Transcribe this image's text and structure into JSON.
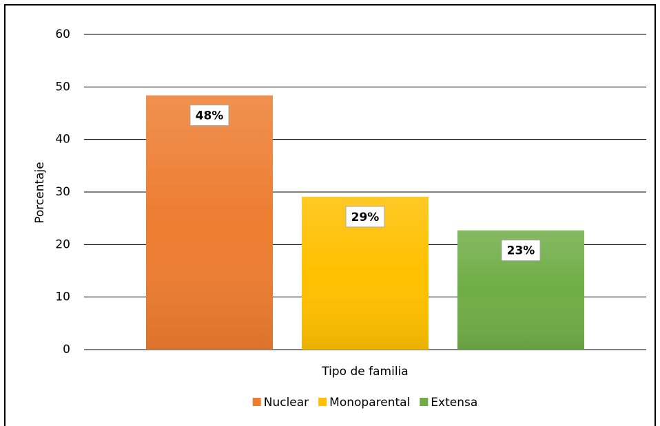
{
  "chart_data": {
    "type": "bar",
    "x_label": "Tipo de familia",
    "y_label": "Porcentaje",
    "categories": [
      null
    ],
    "series": [
      {
        "name": "Nuclear",
        "color": "#ed7d31",
        "values": [
          48.4
        ],
        "value_labels": [
          "48%"
        ]
      },
      {
        "name": "Monoparental",
        "color": "#ffc000",
        "values": [
          29.1
        ],
        "value_labels": [
          "29%"
        ]
      },
      {
        "name": "Extensa",
        "color": "#70ad47",
        "values": [
          22.7
        ],
        "value_labels": [
          "23%"
        ]
      }
    ],
    "ylim": [
      0,
      60
    ],
    "yticks": [
      0,
      10,
      20,
      30,
      40,
      50,
      60
    ],
    "grid": true,
    "legend": "bottom"
  }
}
